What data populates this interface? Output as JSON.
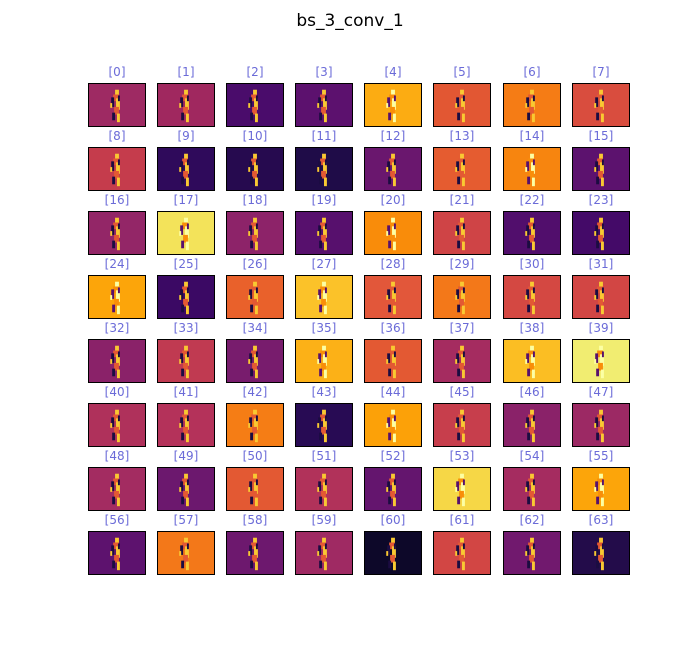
{
  "title": "bs_3_conv_1",
  "label_color": "#6b6bd8",
  "cells": [
    {
      "label": "[0]",
      "bg": "#9e2a63"
    },
    {
      "label": "[1]",
      "bg": "#a0285f"
    },
    {
      "label": "[2]",
      "bg": "#4a0c6b"
    },
    {
      "label": "[3]",
      "bg": "#5c116e"
    },
    {
      "label": "[4]",
      "bg": "#fcac12"
    },
    {
      "label": "[5]",
      "bg": "#e25733"
    },
    {
      "label": "[6]",
      "bg": "#f57c15"
    },
    {
      "label": "[7]",
      "bg": "#d94d3e"
    },
    {
      "label": "[8]",
      "bg": "#c53c4c"
    },
    {
      "label": "[9]",
      "bg": "#2f0a5b"
    },
    {
      "label": "[10]",
      "bg": "#260a4f"
    },
    {
      "label": "[11]",
      "bg": "#1f0c48"
    },
    {
      "label": "[12]",
      "bg": "#6a176e"
    },
    {
      "label": "[13]",
      "bg": "#e55c30"
    },
    {
      "label": "[14]",
      "bg": "#f7850f"
    },
    {
      "label": "[15]",
      "bg": "#5c126e"
    },
    {
      "label": "[16]",
      "bg": "#932667"
    },
    {
      "label": "[17]",
      "bg": "#f3e35a"
    },
    {
      "label": "[18]",
      "bg": "#8d2369"
    },
    {
      "label": "[19]",
      "bg": "#57106d"
    },
    {
      "label": "[20]",
      "bg": "#f98c0a"
    },
    {
      "label": "[21]",
      "bg": "#cf4446"
    },
    {
      "label": "[22]",
      "bg": "#510e6c"
    },
    {
      "label": "[23]",
      "bg": "#440a68"
    },
    {
      "label": "[24]",
      "bg": "#fca50a"
    },
    {
      "label": "[25]",
      "bg": "#3b0964"
    },
    {
      "label": "[26]",
      "bg": "#e9612b"
    },
    {
      "label": "[27]",
      "bg": "#fbc229"
    },
    {
      "label": "[28]",
      "bg": "#e2573a"
    },
    {
      "label": "[29]",
      "bg": "#f37819"
    },
    {
      "label": "[30]",
      "bg": "#d44842"
    },
    {
      "label": "[31]",
      "bg": "#d24644"
    },
    {
      "label": "[32]",
      "bg": "#8a2269"
    },
    {
      "label": "[33]",
      "bg": "#c03a51"
    },
    {
      "label": "[34]",
      "bg": "#781c6d"
    },
    {
      "label": "[35]",
      "bg": "#fcb117"
    },
    {
      "label": "[36]",
      "bg": "#e35933"
    },
    {
      "label": "[37]",
      "bg": "#a52c60"
    },
    {
      "label": "[38]",
      "bg": "#fbbe23"
    },
    {
      "label": "[39]",
      "bg": "#f1ed71"
    },
    {
      "label": "[40]",
      "bg": "#af315b"
    },
    {
      "label": "[41]",
      "bg": "#b4325a"
    },
    {
      "label": "[42]",
      "bg": "#f57d15"
    },
    {
      "label": "[43]",
      "bg": "#280b54"
    },
    {
      "label": "[44]",
      "bg": "#fca108"
    },
    {
      "label": "[45]",
      "bg": "#c73e4c"
    },
    {
      "label": "[46]",
      "bg": "#8a2269"
    },
    {
      "label": "[47]",
      "bg": "#9c2964"
    },
    {
      "label": "[48]",
      "bg": "#a32c61"
    },
    {
      "label": "[49]",
      "bg": "#6c186e"
    },
    {
      "label": "[50]",
      "bg": "#e35933"
    },
    {
      "label": "[51]",
      "bg": "#b1325a"
    },
    {
      "label": "[52]",
      "bg": "#64156e"
    },
    {
      "label": "[53]",
      "bg": "#f6d746"
    },
    {
      "label": "[54]",
      "bg": "#a52c60"
    },
    {
      "label": "[55]",
      "bg": "#fca50a"
    },
    {
      "label": "[56]",
      "bg": "#5d126e"
    },
    {
      "label": "[57]",
      "bg": "#f37819"
    },
    {
      "label": "[58]",
      "bg": "#6d186e"
    },
    {
      "label": "[59]",
      "bg": "#9f2a63"
    },
    {
      "label": "[60]",
      "bg": "#0d0829"
    },
    {
      "label": "[61]",
      "bg": "#d24644"
    },
    {
      "label": "[62]",
      "bg": "#71196e"
    },
    {
      "label": "[63]",
      "bg": "#230c4a"
    }
  ]
}
